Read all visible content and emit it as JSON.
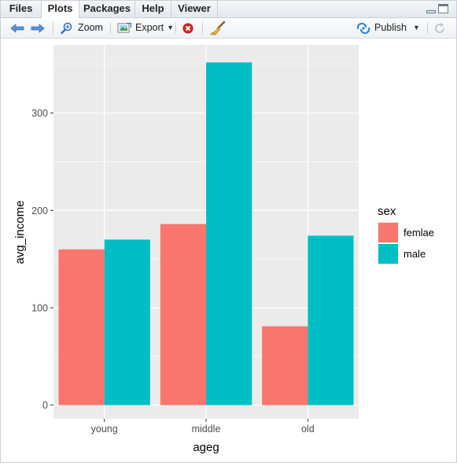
{
  "tabs": [
    {
      "label": "Files",
      "active": false
    },
    {
      "label": "Plots",
      "active": true
    },
    {
      "label": "Packages",
      "active": false
    },
    {
      "label": "Help",
      "active": false
    },
    {
      "label": "Viewer",
      "active": false
    }
  ],
  "toolbar": {
    "zoom_label": "Zoom",
    "export_label": "Export",
    "publish_label": "Publish"
  },
  "colors": {
    "female": "#F8766D",
    "male": "#00BFC4",
    "panel": "#EBEBEB",
    "grid": "#FFFFFF"
  },
  "chart_data": {
    "type": "bar",
    "categories": [
      "young",
      "middle",
      "old"
    ],
    "series": [
      {
        "name": "femlae",
        "values": [
          160,
          186,
          81
        ]
      },
      {
        "name": "male",
        "values": [
          170,
          352,
          174
        ]
      }
    ],
    "xlabel": "ageg",
    "ylabel": "avg_income",
    "yticks": [
      0,
      100,
      200,
      300
    ],
    "ylim": [
      -14,
      370
    ],
    "legend_title": "sex",
    "legend_position": "right",
    "grid": true
  }
}
